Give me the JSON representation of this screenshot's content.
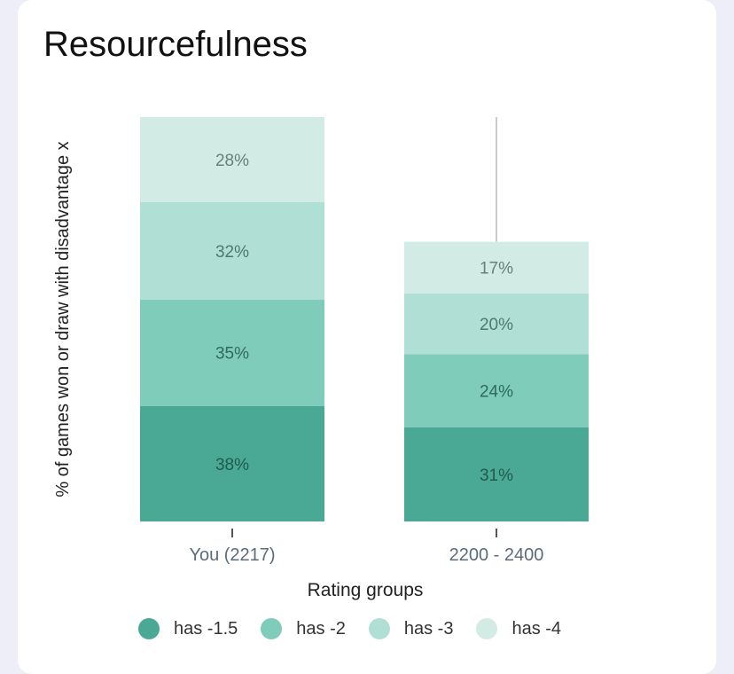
{
  "card": {
    "title": "Resourcefulness"
  },
  "chart_data": {
    "type": "bar",
    "stacked": true,
    "title": "Resourcefulness",
    "xlabel": "Rating groups",
    "ylabel": "% of games won or draw with disadvantage x",
    "categories": [
      "You (2217)",
      "2200 - 2400"
    ],
    "series": [
      {
        "name": "has -1.5",
        "color": "#49a994",
        "values": [
          38,
          31
        ]
      },
      {
        "name": "has -2",
        "color": "#7fccba",
        "values": [
          35,
          24
        ]
      },
      {
        "name": "has -3",
        "color": "#b0dfd5",
        "values": [
          32,
          20
        ]
      },
      {
        "name": "has -4",
        "color": "#d3ebe5",
        "values": [
          28,
          17
        ]
      }
    ],
    "ylim": [
      0,
      133
    ],
    "error_bars": [
      null,
      {
        "upper": 133
      }
    ],
    "grid": false,
    "legend_position": "bottom"
  }
}
